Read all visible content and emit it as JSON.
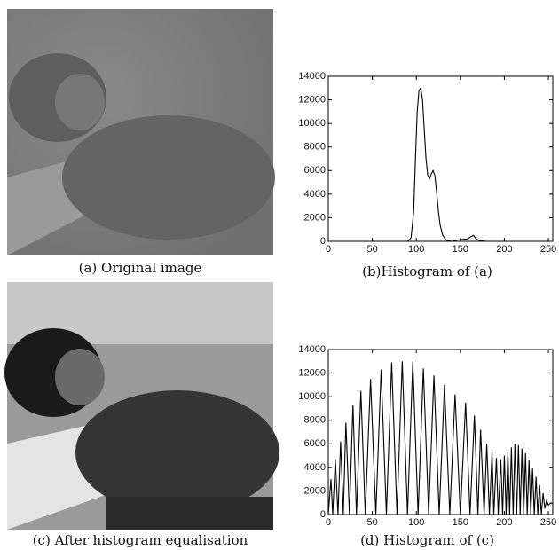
{
  "images": [
    {
      "caption": "(a) Original image"
    },
    {
      "caption": "(c) After histogram equalisation"
    }
  ],
  "chart_data": [
    {
      "type": "line",
      "caption": "(b)Histogram of (a)",
      "color": "#000000",
      "x": [
        0,
        90,
        94,
        97,
        99,
        101,
        103,
        105,
        107,
        109,
        111,
        113,
        115,
        117,
        119,
        121,
        123,
        125,
        127,
        130,
        134,
        140,
        150,
        158,
        162,
        165,
        168,
        172,
        180,
        255
      ],
      "values": [
        0,
        0,
        300,
        2500,
        7000,
        11000,
        12800,
        13000,
        12000,
        9500,
        7000,
        5600,
        5300,
        5700,
        6000,
        5600,
        4200,
        2600,
        1400,
        500,
        100,
        0,
        150,
        200,
        400,
        500,
        200,
        50,
        0,
        0
      ],
      "xlim": [
        0,
        255
      ],
      "ylim": [
        0,
        14000
      ],
      "xticks": [
        0,
        50,
        100,
        150,
        200,
        250
      ],
      "yticks": [
        0,
        2000,
        4000,
        6000,
        8000,
        10000,
        12000,
        14000
      ]
    },
    {
      "type": "line",
      "caption": "(d) Histogram of (c)",
      "color": "#000000",
      "x": [
        0,
        3,
        5,
        8,
        11,
        14,
        17,
        20,
        24,
        28,
        32,
        37,
        42,
        48,
        54,
        60,
        66,
        72,
        78,
        84,
        90,
        96,
        102,
        108,
        114,
        120,
        126,
        132,
        138,
        144,
        150,
        156,
        161,
        166,
        170,
        173,
        177,
        180,
        183,
        186,
        188,
        191,
        193,
        196,
        198,
        200,
        202,
        204,
        206,
        208,
        210,
        212,
        214,
        216,
        218,
        220,
        222,
        224,
        226,
        228,
        230,
        232,
        234,
        236,
        238,
        240,
        242,
        244,
        246,
        248,
        250,
        253,
        255
      ],
      "values": [
        0,
        3000,
        0,
        4700,
        0,
        6200,
        0,
        7800,
        0,
        9300,
        0,
        10500,
        0,
        11500,
        0,
        12300,
        0,
        12900,
        0,
        13000,
        0,
        13000,
        0,
        12400,
        0,
        11800,
        0,
        11000,
        0,
        10200,
        0,
        9500,
        0,
        8400,
        0,
        7200,
        0,
        6000,
        0,
        5300,
        0,
        4800,
        0,
        4700,
        0,
        5000,
        0,
        5300,
        0,
        5700,
        0,
        6000,
        0,
        5900,
        0,
        5600,
        0,
        5200,
        0,
        4600,
        0,
        3900,
        0,
        3200,
        0,
        2500,
        0,
        1800,
        500,
        1200,
        800,
        1000,
        900
      ],
      "xlim": [
        0,
        255
      ],
      "ylim": [
        0,
        14000
      ],
      "xticks": [
        0,
        50,
        100,
        150,
        200,
        250
      ],
      "yticks": [
        0,
        2000,
        4000,
        6000,
        8000,
        10000,
        12000,
        14000
      ]
    }
  ]
}
